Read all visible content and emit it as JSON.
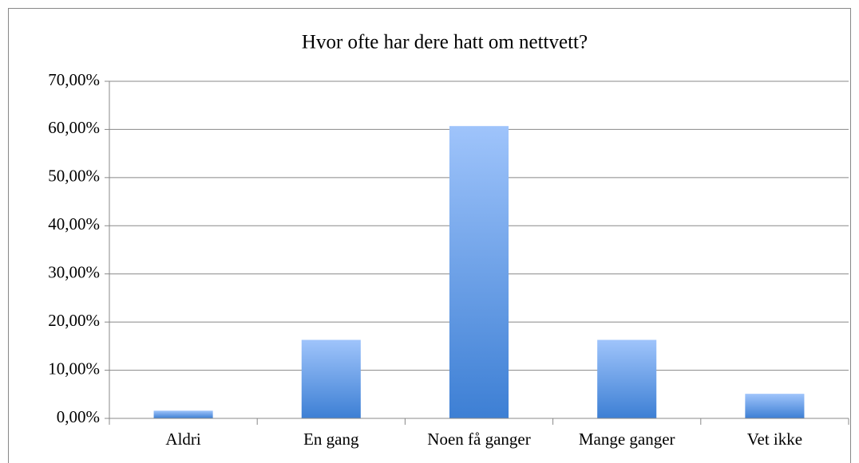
{
  "chart_data": {
    "type": "bar",
    "title": "Hvor ofte har dere hatt om nettvett?",
    "categories": [
      "Aldri",
      "En gang",
      "Noen få ganger",
      "Mange ganger",
      "Vet ikke"
    ],
    "values": [
      1.6,
      16.3,
      60.7,
      16.3,
      5.1
    ],
    "color": "#3d7fd4",
    "ylim": [
      0,
      70
    ],
    "yticks": [
      {
        "value": 0,
        "label": "0,00%"
      },
      {
        "value": 10,
        "label": "10,00%"
      },
      {
        "value": 20,
        "label": "20,00%"
      },
      {
        "value": 30,
        "label": "30,00%"
      },
      {
        "value": 40,
        "label": "40,00%"
      },
      {
        "value": 50,
        "label": "50,00%"
      },
      {
        "value": 60,
        "label": "60,00%"
      },
      {
        "value": 70,
        "label": "70,00%"
      }
    ],
    "grid": true
  }
}
